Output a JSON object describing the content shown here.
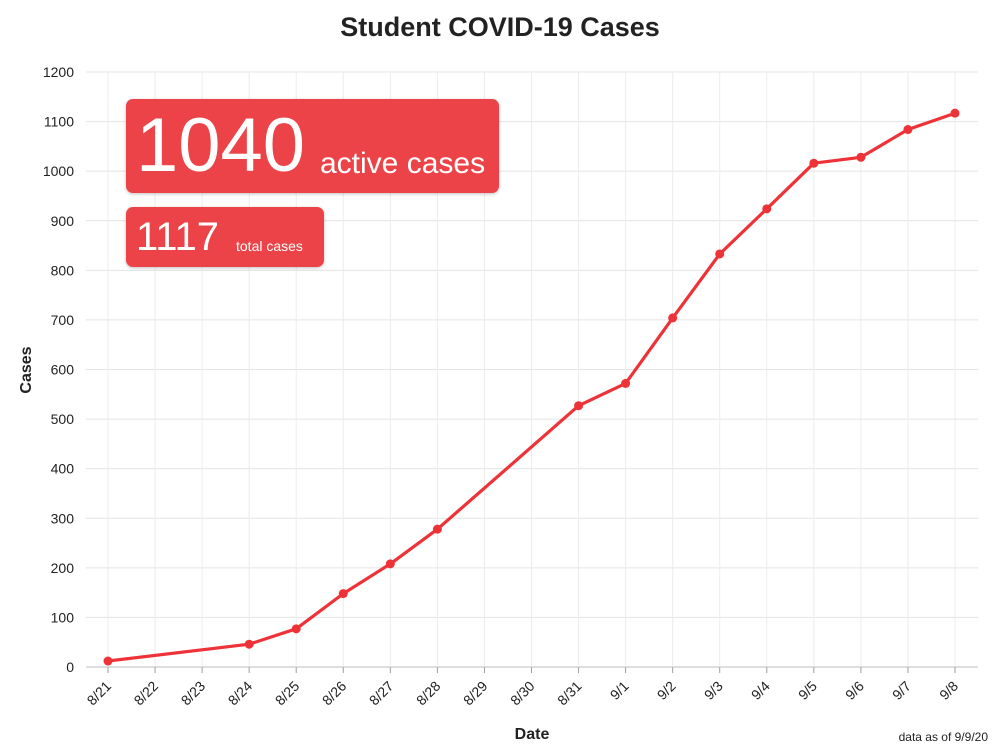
{
  "chart_data": {
    "type": "line",
    "title": "Student COVID-19 Cases",
    "xlabel": "Date",
    "ylabel": "Cases",
    "categories": [
      "8/21",
      "8/22",
      "8/23",
      "8/24",
      "8/25",
      "8/26",
      "8/27",
      "8/28",
      "8/29",
      "8/30",
      "8/31",
      "9/1",
      "9/2",
      "9/3",
      "9/4",
      "9/5",
      "9/6",
      "9/7",
      "9/8"
    ],
    "series": [
      {
        "values": [
          12,
          null,
          null,
          46,
          77,
          148,
          208,
          278,
          null,
          null,
          527,
          572,
          704,
          833,
          924,
          1016,
          1028,
          1084,
          1117
        ],
        "color": "#ee3338"
      }
    ],
    "ylim": [
      0,
      1200
    ],
    "yticks": [
      0,
      100,
      200,
      300,
      400,
      500,
      600,
      700,
      800,
      900,
      1000,
      1100,
      1200
    ],
    "grid": true,
    "legend": "none"
  },
  "badges": {
    "active_number": "1040",
    "active_label": "active cases",
    "total_number": "1117",
    "total_label": "total cases",
    "color": "#ec4348"
  },
  "footnote": "data as of 9/9/20"
}
